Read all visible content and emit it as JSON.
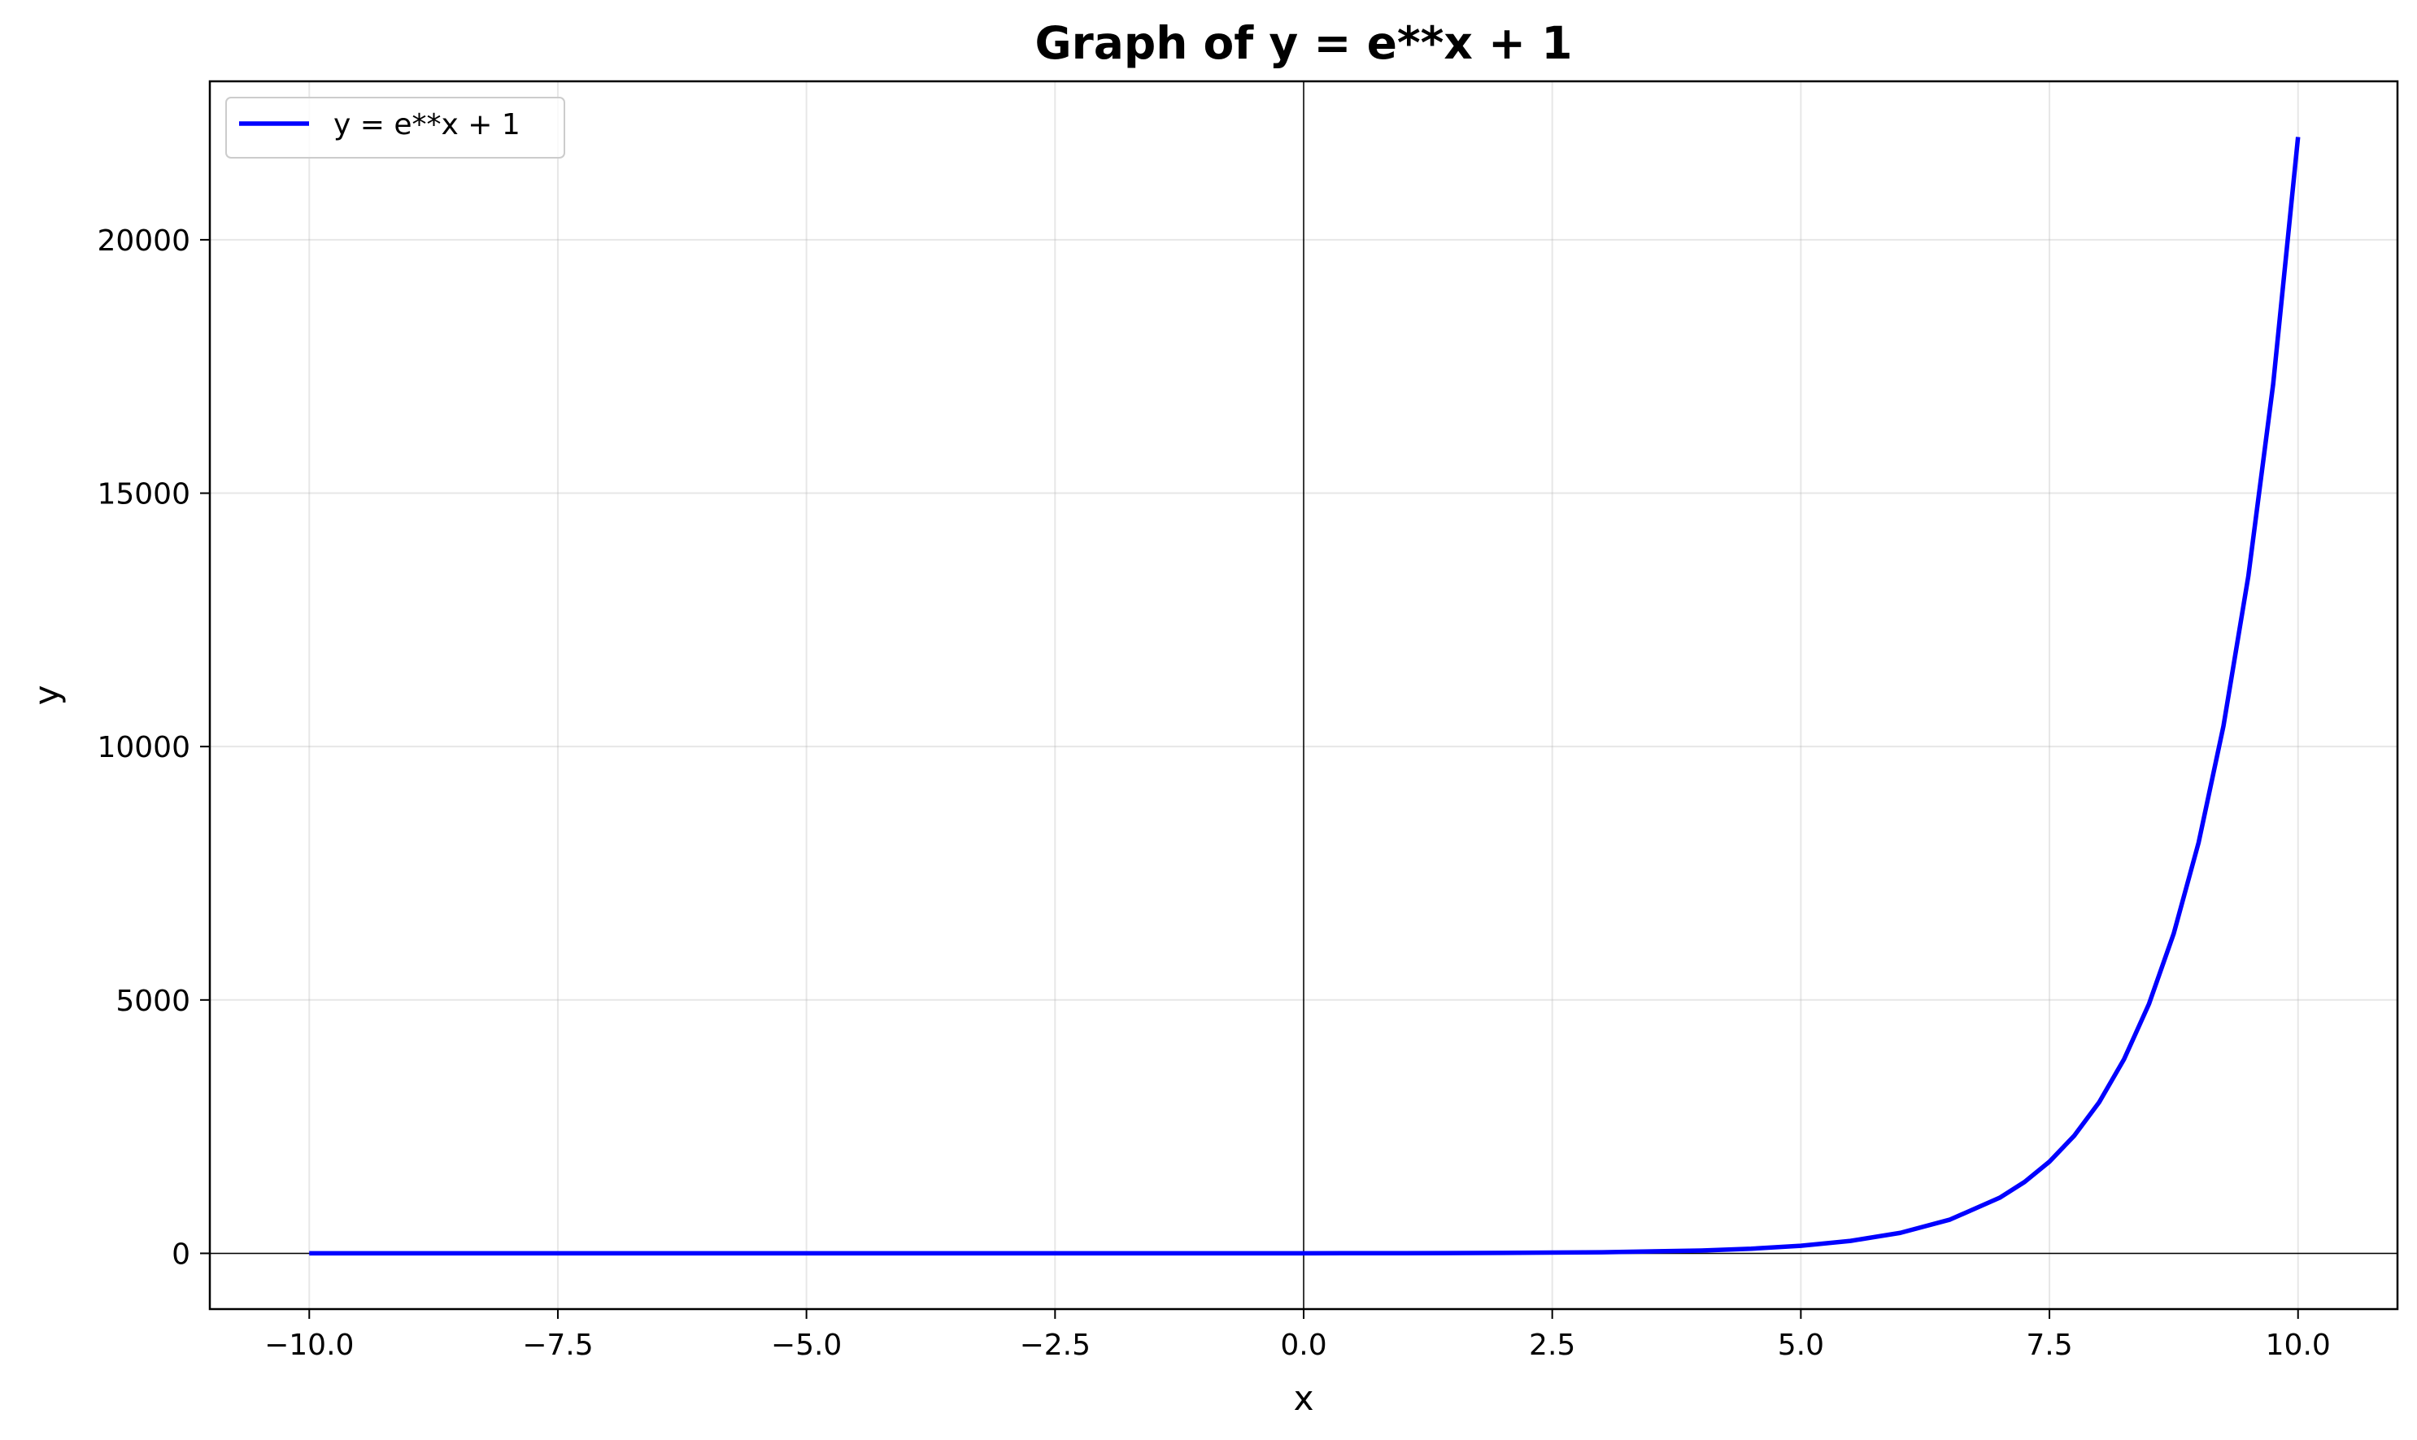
{
  "chart_data": {
    "type": "line",
    "title": "Graph of y = e**x + 1",
    "xlabel": "x",
    "ylabel": "y",
    "xlim": [
      -11,
      11
    ],
    "ylim": [
      -1100,
      23127
    ],
    "x_ticks": [
      -10,
      -7.5,
      -5,
      -2.5,
      0,
      2.5,
      5,
      7.5,
      10
    ],
    "x_tick_labels": [
      "−10.0",
      "−7.5",
      "−5.0",
      "−2.5",
      "0.0",
      "2.5",
      "5.0",
      "7.5",
      "10.0"
    ],
    "y_ticks": [
      0,
      5000,
      10000,
      15000,
      20000
    ],
    "y_tick_labels": [
      "0",
      "5000",
      "10000",
      "15000",
      "20000"
    ],
    "grid": true,
    "reference_lines": {
      "x": 0,
      "y": 0
    },
    "legend": {
      "placement": "top-left",
      "entries": [
        "y = e**x + 1"
      ]
    },
    "series": [
      {
        "name": "y = e**x + 1",
        "color": "#0000ff",
        "x": [
          -10,
          -9,
          -8,
          -7,
          -6,
          -5,
          -4,
          -3,
          -2,
          -1,
          0,
          1,
          2,
          3,
          4,
          4.5,
          5,
          5.5,
          6,
          6.5,
          7,
          7.25,
          7.5,
          7.75,
          8,
          8.25,
          8.5,
          8.75,
          9,
          9.25,
          9.5,
          9.75,
          10
        ],
        "y": [
          1.0,
          1.0,
          1.0,
          1.0,
          1.0,
          1.01,
          1.02,
          1.05,
          1.14,
          1.37,
          2,
          3.72,
          8.39,
          21.09,
          55.6,
          91.0,
          149.4,
          245.7,
          404.4,
          666.1,
          1097.6,
          1409.0,
          1809.0,
          2322.6,
          2982.0,
          3829.6,
          4915.8,
          6311.7,
          8104.1,
          10405.3,
          13360.7,
          17154.2,
          22027.5
        ]
      }
    ]
  }
}
